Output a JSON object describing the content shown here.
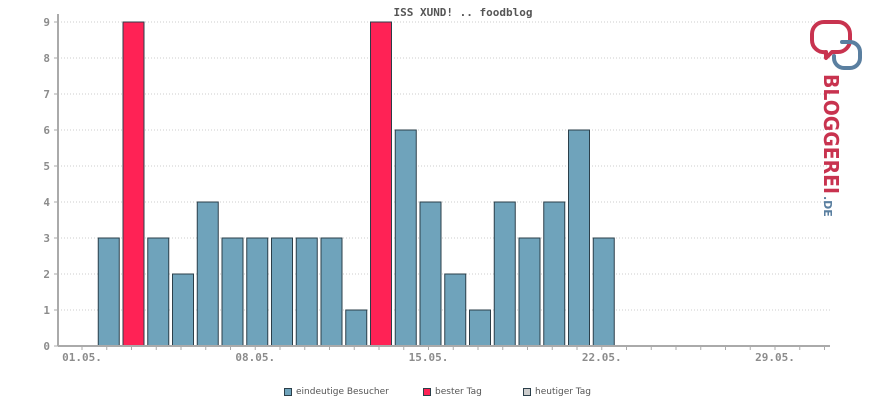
{
  "chart_data": {
    "type": "bar",
    "title": "ISS XUND! .. foodblog",
    "xlabel": "",
    "ylabel": "",
    "ylim": [
      0,
      9
    ],
    "yticks": [
      "0",
      "1",
      "2",
      "3",
      "4",
      "5",
      "6",
      "7",
      "8",
      "9"
    ],
    "grid": true,
    "x_tick_labels": [
      "01.05.",
      "08.05.",
      "15.05.",
      "22.05.",
      "29.05."
    ],
    "days": [
      "01.05.",
      "02.05.",
      "03.05.",
      "04.05.",
      "05.05.",
      "06.05.",
      "07.05.",
      "08.05.",
      "09.05.",
      "10.05.",
      "11.05.",
      "12.05.",
      "13.05.",
      "14.05.",
      "15.05.",
      "16.05.",
      "17.05.",
      "18.05.",
      "19.05.",
      "20.05.",
      "21.05.",
      "22.05.",
      "23.05.",
      "24.05.",
      "25.05.",
      "26.05.",
      "27.05.",
      "28.05.",
      "29.05.",
      "30.05.",
      "31.05."
    ],
    "series": [
      {
        "name": "eindeutige Besucher",
        "values": [
          0,
          3,
          9,
          3,
          2,
          4,
          3,
          3,
          3,
          3,
          3,
          1,
          9,
          6,
          4,
          2,
          1,
          4,
          3,
          4,
          6,
          3,
          0,
          0,
          0,
          0,
          0,
          0,
          0,
          0,
          0
        ]
      }
    ],
    "best_days": [
      "03.05.",
      "13.05."
    ],
    "legend": [
      "eindeutige Besucher",
      "bester Tag",
      "heutiger Tag"
    ],
    "legend_position": "bottom-center"
  },
  "colors": {
    "visitors": "#6fa3bb",
    "best_day": "#ff2255",
    "today": "#cccccc",
    "bar_border": "#2b3f4a",
    "axis": "#aaaaaa",
    "grid": "#cccccc"
  },
  "logo": {
    "text_main": "BLOGGEREI",
    "text_suffix": ".DE",
    "icon": "bloggerei-speech-bubbles-icon",
    "color_main": "#c8334f",
    "color_suffix": "#5a7fa0"
  }
}
